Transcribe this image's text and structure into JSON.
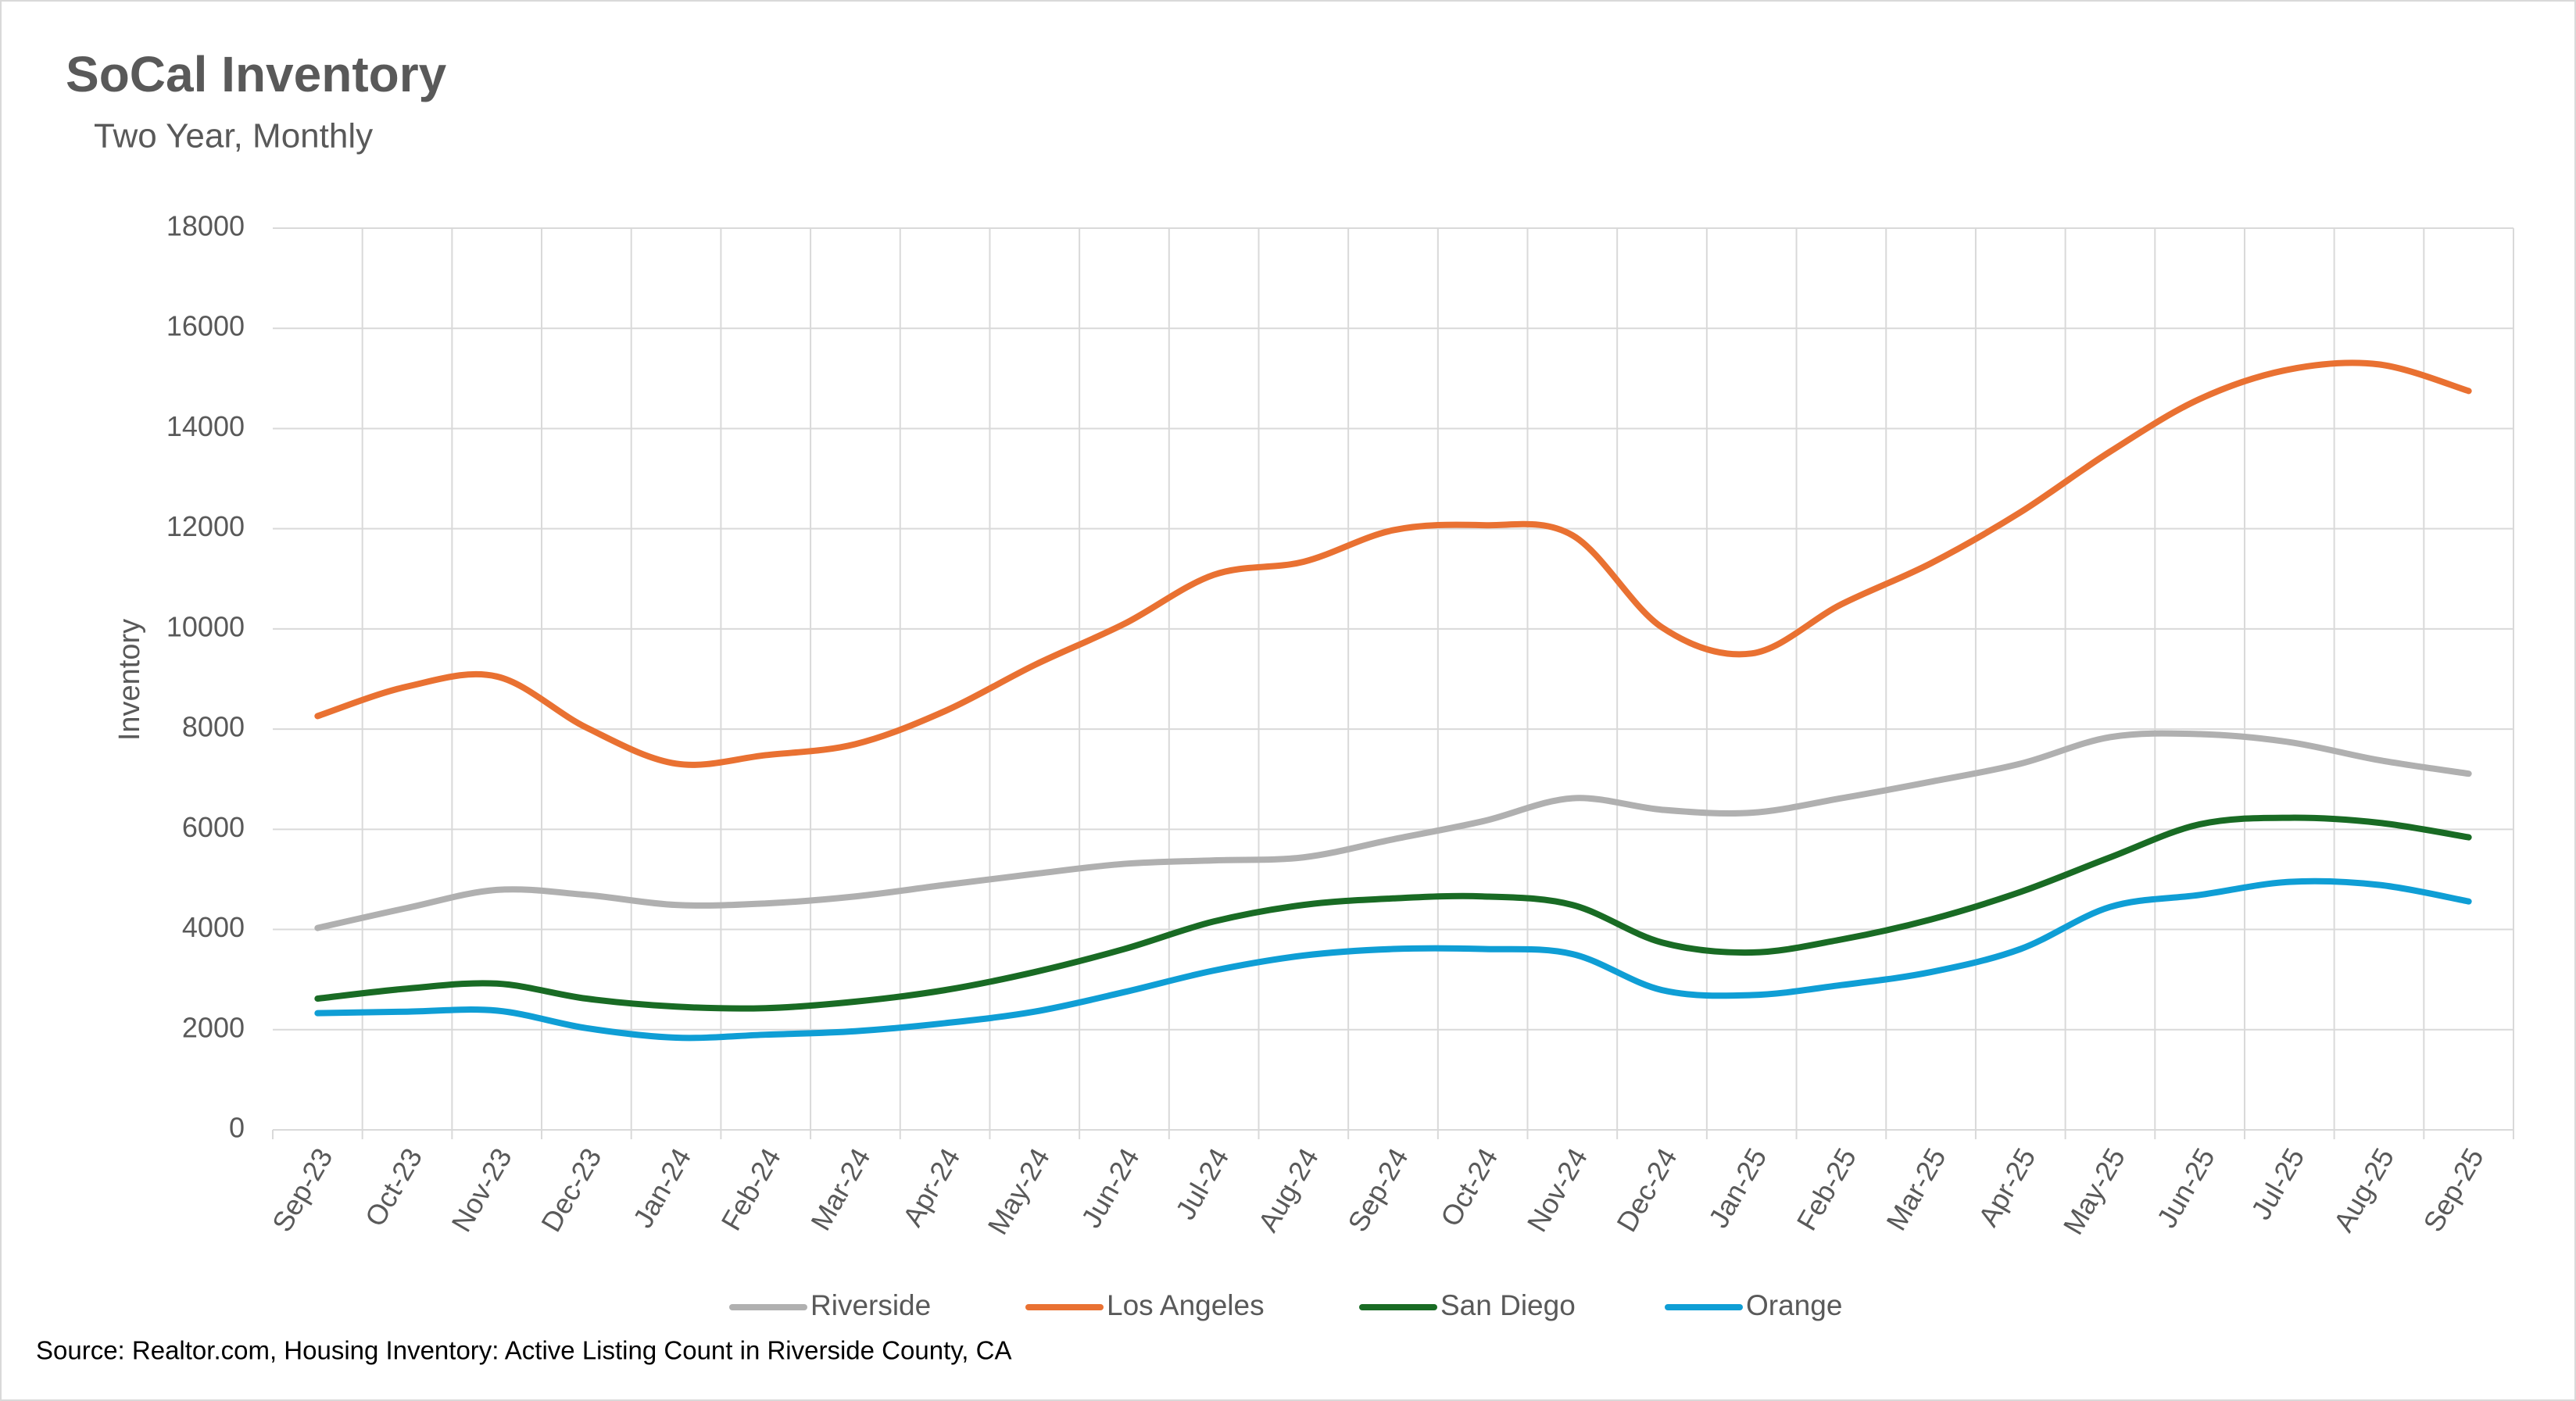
{
  "chart_data": {
    "type": "line",
    "title": "SoCal Inventory",
    "subtitle": "Two Year, Monthly",
    "y_label": "Inventory",
    "source": "Source: Realtor.com, Housing Inventory: Active Listing Count in Riverside County, CA",
    "categories": [
      "Sep-23",
      "Oct-23",
      "Nov-23",
      "Dec-23",
      "Jan-24",
      "Feb-24",
      "Mar-24",
      "Apr-24",
      "May-24",
      "Jun-24",
      "Jul-24",
      "Aug-24",
      "Sep-24",
      "Oct-24",
      "Nov-24",
      "Dec-24",
      "Jan-25",
      "Feb-25",
      "Mar-25",
      "Apr-25",
      "May-25",
      "Jun-25",
      "Jul-25",
      "Aug-25",
      "Sep-25"
    ],
    "series": [
      {
        "name": "Riverside",
        "color": "#b0b0b0",
        "values": [
          4030,
          4430,
          4790,
          4690,
          4490,
          4520,
          4660,
          4890,
          5110,
          5310,
          5380,
          5440,
          5800,
          6160,
          6620,
          6390,
          6330,
          6620,
          6950,
          7310,
          7840,
          7900,
          7740,
          7380,
          7110
        ]
      },
      {
        "name": "Los Angeles",
        "color": "#e97132",
        "values": [
          8260,
          8850,
          9050,
          8030,
          7310,
          7480,
          7700,
          8360,
          9280,
          10100,
          11080,
          11340,
          11970,
          12070,
          11870,
          10030,
          9510,
          10490,
          11310,
          12330,
          13540,
          14590,
          15180,
          15280,
          14750
        ]
      },
      {
        "name": "San Diego",
        "color": "#196b24",
        "values": [
          2620,
          2820,
          2920,
          2620,
          2460,
          2430,
          2560,
          2790,
          3150,
          3610,
          4160,
          4490,
          4620,
          4660,
          4490,
          3740,
          3540,
          3800,
          4200,
          4750,
          5440,
          6100,
          6230,
          6130,
          5840
        ]
      },
      {
        "name": "Orange",
        "color": "#0f9ed5",
        "values": [
          2330,
          2360,
          2380,
          2030,
          1840,
          1900,
          1970,
          2130,
          2360,
          2750,
          3180,
          3480,
          3610,
          3610,
          3510,
          2790,
          2690,
          2890,
          3150,
          3610,
          4450,
          4690,
          4950,
          4890,
          4560
        ]
      }
    ],
    "ylim": [
      0,
      18000
    ],
    "yticks": [
      0,
      2000,
      4000,
      6000,
      8000,
      10000,
      12000,
      14000,
      16000,
      18000
    ],
    "grid": true,
    "legend": "bottom"
  }
}
